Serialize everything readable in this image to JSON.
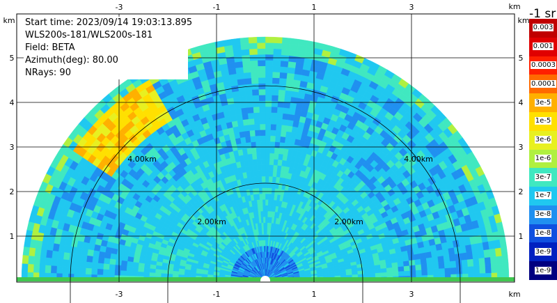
{
  "info": {
    "start_time": "Start time: 2023/09/14 19:03:13.895",
    "instrument": "WLS200s-181/WLS200s-181",
    "field": "Field: BETA",
    "azimuth": "Azimuth(deg): 80.00",
    "nrays": "NRays: 90"
  },
  "axes": {
    "x_ticks": [
      "-3",
      "-1",
      "1",
      "3"
    ],
    "y_ticks": [
      "1",
      "2",
      "3",
      "4",
      "5"
    ],
    "unit_label": "km"
  },
  "rings": {
    "labels": [
      "2.00km",
      "2.00km",
      "4.00km",
      "4.00km"
    ]
  },
  "legend": {
    "title": "-1 sr",
    "labels": [
      "0.003",
      "0.001",
      "0.0003",
      "0.0001",
      "3e-5",
      "1e-5",
      "3e-6",
      "1e-6",
      "3e-7",
      "1e-7",
      "3e-8",
      "1e-8",
      "3e-9",
      "1e-9"
    ],
    "colors": [
      "#c00000",
      "#e00000",
      "#ff2000",
      "#ff6a00",
      "#ffb000",
      "#ffe000",
      "#e8f020",
      "#b0f040",
      "#40e8c0",
      "#20c8f0",
      "#2090f0",
      "#1050e0",
      "#0020c0",
      "#000080"
    ]
  },
  "chart_data": {
    "type": "heatmap",
    "title": "",
    "x_ticks": [
      -3,
      -1,
      1,
      3
    ],
    "y_ticks": [
      1,
      2,
      3,
      4,
      5
    ],
    "xlim": [
      -5.1,
      5.1
    ],
    "ylim": [
      0,
      5.5
    ],
    "range_rings_km": [
      2,
      4
    ],
    "max_range_km": 5,
    "field": "BETA",
    "azimuth_deg": 80.0,
    "nrays": 90,
    "color_scale": "log",
    "vmin": "1e-9",
    "vmax": "0.003",
    "grid": true
  }
}
